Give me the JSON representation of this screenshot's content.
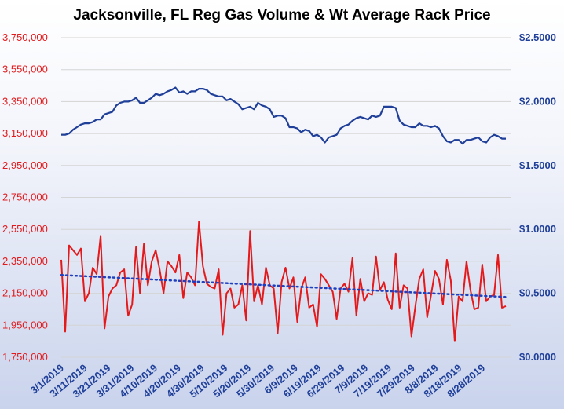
{
  "chart_data": {
    "type": "line",
    "title": "Jacksonville, FL Reg Gas Volume & Wt Average Rack Price",
    "xlabel": "",
    "ylabel": "",
    "x_tick_labels": [
      "3/1/2019",
      "3/11/2019",
      "3/21/2019",
      "3/31/2019",
      "4/10/2019",
      "4/20/2019",
      "4/30/2019",
      "5/10/2019",
      "5/20/2019",
      "5/30/2019",
      "6/9/2019",
      "6/19/2019",
      "6/29/2019",
      "7/9/2019",
      "7/19/2019",
      "7/29/2019",
      "8/8/2019",
      "8/18/2019",
      "8/28/2019"
    ],
    "x_start": "3/1/2019",
    "x_end": "9/5/2019",
    "y_left": {
      "ylim": [
        1750000,
        3750000
      ],
      "ticks": [
        1750000,
        1950000,
        2150000,
        2350000,
        2550000,
        2750000,
        2950000,
        3150000,
        3350000,
        3550000,
        3750000
      ],
      "tick_labels": [
        "1,750,000",
        "1,950,000",
        "2,150,000",
        "2,350,000",
        "2,550,000",
        "2,750,000",
        "2,950,000",
        "3,150,000",
        "3,350,000",
        "3,550,000",
        "3,750,000"
      ],
      "color": "#e31a1c"
    },
    "y_right": {
      "ylim": [
        0,
        2.5
      ],
      "ticks": [
        0,
        0.5,
        1.0,
        1.5,
        2.0,
        2.5
      ],
      "tick_labels": [
        "$0.0000",
        "$0.5000",
        "$1.0000",
        "$1.5000",
        "$2.0000",
        "$2.5000"
      ],
      "color": "#1f3f99"
    },
    "grid": true,
    "series": [
      {
        "axis": "right",
        "color": "#1f3f99",
        "style": "solid",
        "values": [
          1.74,
          1.74,
          1.75,
          1.78,
          1.8,
          1.82,
          1.83,
          1.83,
          1.84,
          1.86,
          1.86,
          1.9,
          1.91,
          1.92,
          1.97,
          1.99,
          2,
          2,
          2.01,
          2.03,
          1.99,
          1.99,
          2.01,
          2.03,
          2.06,
          2.05,
          2.06,
          2.08,
          2.09,
          2.11,
          2.07,
          2.08,
          2.06,
          2.08,
          2.08,
          2.1,
          2.1,
          2.09,
          2.06,
          2.05,
          2.04,
          2.04,
          2.01,
          2.02,
          2,
          1.98,
          1.94,
          1.95,
          1.96,
          1.94,
          1.99,
          1.97,
          1.96,
          1.94,
          1.88,
          1.89,
          1.89,
          1.87,
          1.8,
          1.8,
          1.79,
          1.76,
          1.78,
          1.77,
          1.73,
          1.74,
          1.72,
          1.68,
          1.72,
          1.73,
          1.74,
          1.79,
          1.81,
          1.82,
          1.85,
          1.87,
          1.88,
          1.87,
          1.86,
          1.89,
          1.88,
          1.89,
          1.96,
          1.96,
          1.96,
          1.95,
          1.85,
          1.82,
          1.81,
          1.8,
          1.8,
          1.83,
          1.81,
          1.81,
          1.8,
          1.81,
          1.79,
          1.73,
          1.69,
          1.68,
          1.7,
          1.7,
          1.67,
          1.7,
          1.7,
          1.71,
          1.72,
          1.69,
          1.68,
          1.72,
          1.74,
          1.73,
          1.71,
          1.71
        ]
      },
      {
        "axis": "left",
        "color": "#e31a1c",
        "style": "solid",
        "values": [
          2360000,
          1910000,
          2450000,
          2420000,
          2390000,
          2430000,
          2100000,
          2150000,
          2310000,
          2270000,
          2510000,
          1930000,
          2130000,
          2180000,
          2200000,
          2280000,
          2300000,
          2010000,
          2080000,
          2440000,
          2150000,
          2460000,
          2200000,
          2350000,
          2420000,
          2300000,
          2150000,
          2350000,
          2320000,
          2280000,
          2390000,
          2120000,
          2280000,
          2250000,
          2200000,
          2600000,
          2320000,
          2210000,
          2190000,
          2180000,
          2300000,
          1890000,
          2150000,
          2180000,
          2060000,
          2080000,
          2200000,
          1980000,
          2540000,
          2100000,
          2200000,
          2080000,
          2310000,
          2200000,
          2180000,
          1900000,
          2220000,
          2310000,
          2180000,
          2250000,
          1970000,
          2180000,
          2250000,
          2060000,
          2080000,
          1940000,
          2270000,
          2240000,
          2200000,
          2160000,
          1990000,
          2180000,
          2210000,
          2160000,
          2370000,
          2010000,
          2240000,
          2100000,
          2150000,
          2140000,
          2380000,
          2170000,
          2220000,
          2110000,
          2050000,
          2400000,
          2060000,
          2200000,
          2180000,
          1880000,
          2070000,
          2240000,
          2300000,
          2000000,
          2140000,
          2290000,
          2240000,
          2080000,
          2360000,
          2230000,
          1850000,
          2130000,
          2100000,
          2350000,
          2170000,
          2050000,
          2060000,
          2330000,
          2100000,
          2130000,
          2140000,
          2390000,
          2060000,
          2070000
        ]
      }
    ]
  }
}
